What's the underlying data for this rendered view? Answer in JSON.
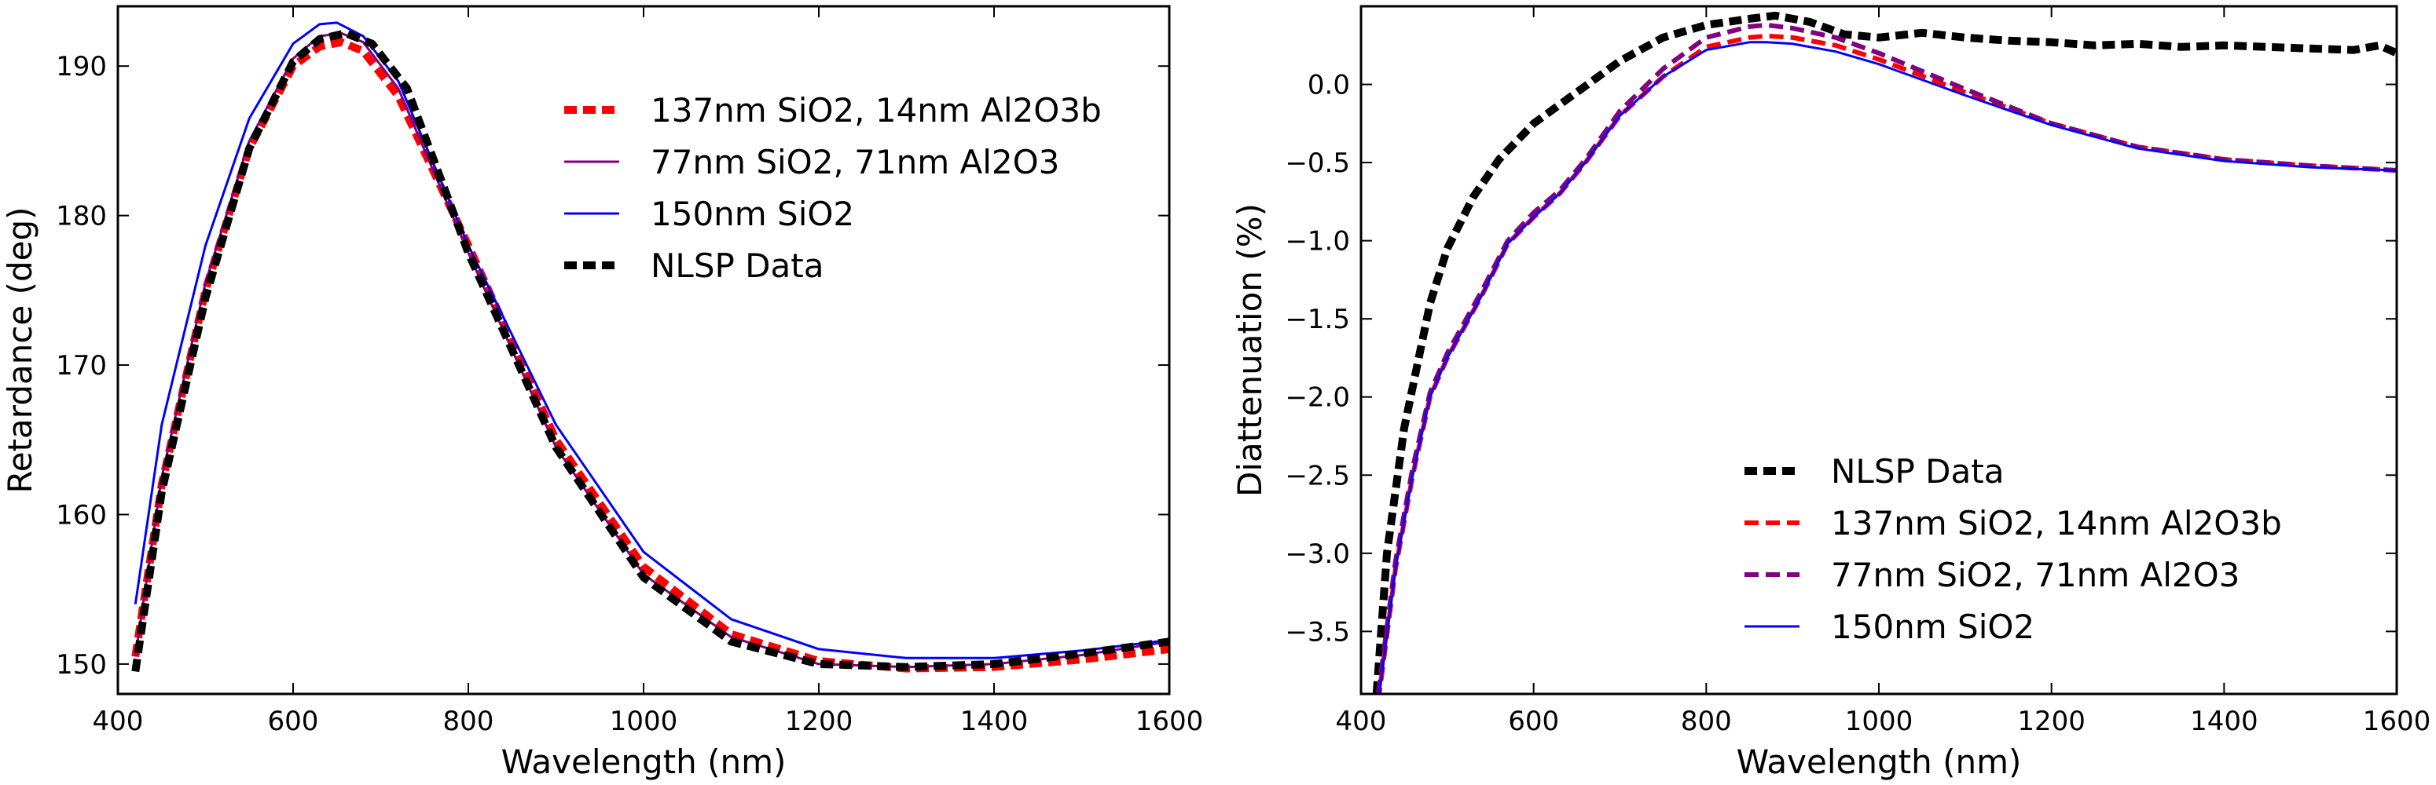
{
  "chart_data": [
    {
      "type": "line",
      "title": "",
      "xlabel": "Wavelength (nm)",
      "ylabel": "Retardance (deg)",
      "xlim": [
        400,
        1600
      ],
      "ylim": [
        148,
        194
      ],
      "xticks": [
        400,
        600,
        800,
        1000,
        1200,
        1400,
        1600
      ],
      "xtick_labels": [
        "400",
        "600",
        "800",
        "1000",
        "1200",
        "1400",
        "1600"
      ],
      "yticks": [
        150,
        160,
        170,
        180,
        190
      ],
      "ytick_labels": [
        "150",
        "160",
        "170",
        "180",
        "190"
      ],
      "legend_position": "upper-right",
      "series": [
        {
          "name": "137nm SiO2, 14nm Al2O3b",
          "color": "#ff0000",
          "style": "dashed-thick",
          "x": [
            420,
            450,
            500,
            550,
            600,
            630,
            655,
            680,
            720,
            800,
            900,
            1000,
            1100,
            1200,
            1300,
            1400,
            1500,
            1600
          ],
          "y": [
            150.5,
            162,
            175,
            184.5,
            190,
            191.3,
            191.6,
            191,
            188,
            178,
            165,
            156.5,
            152,
            150.2,
            149.7,
            149.8,
            150.3,
            151
          ]
        },
        {
          "name": "77nm SiO2, 71nm Al2O3",
          "color": "#800080",
          "style": "solid",
          "x": [
            420,
            450,
            500,
            550,
            600,
            630,
            655,
            680,
            720,
            800,
            900,
            1000,
            1100,
            1200,
            1300,
            1400,
            1500,
            1600
          ],
          "y": [
            150.5,
            162.5,
            175.5,
            185,
            190.5,
            192,
            192.2,
            191.6,
            188.5,
            177.5,
            164.5,
            156,
            151.8,
            150,
            149.8,
            150,
            150.6,
            151.5
          ]
        },
        {
          "name": "150nm SiO2",
          "color": "#0000ff",
          "style": "solid",
          "x": [
            420,
            450,
            500,
            550,
            600,
            630,
            650,
            680,
            720,
            800,
            900,
            1000,
            1100,
            1200,
            1300,
            1400,
            1500,
            1600
          ],
          "y": [
            154,
            166,
            178,
            186.5,
            191.5,
            192.8,
            192.9,
            192,
            189,
            178,
            166,
            157.5,
            153,
            151,
            150.4,
            150.4,
            150.9,
            151.6
          ]
        },
        {
          "name": "NLSP Data",
          "color": "#000000",
          "style": "dashed-thick",
          "x": [
            420,
            450,
            500,
            550,
            600,
            630,
            660,
            690,
            730,
            800,
            900,
            1000,
            1100,
            1200,
            1300,
            1400,
            1500,
            1600
          ],
          "y": [
            149.5,
            161.5,
            174.5,
            184.5,
            190.3,
            191.8,
            192.2,
            191.5,
            188.5,
            177.5,
            164.5,
            155.8,
            151.5,
            150,
            149.8,
            150,
            150.7,
            151.5
          ]
        }
      ],
      "legend_order": [
        0,
        1,
        2,
        3
      ]
    },
    {
      "type": "line",
      "title": "",
      "xlabel": "Wavelength (nm)",
      "ylabel": "Diattenuation (%)",
      "xlim": [
        400,
        1600
      ],
      "ylim": [
        -3.9,
        0.5
      ],
      "xticks": [
        400,
        600,
        800,
        1000,
        1200,
        1400,
        1600
      ],
      "xtick_labels": [
        "400",
        "600",
        "800",
        "1000",
        "1200",
        "1400",
        "1600"
      ],
      "yticks": [
        -3.5,
        -3.0,
        -2.5,
        -2.0,
        -1.5,
        -1.0,
        -0.5,
        0.0
      ],
      "ytick_labels": [
        "−3.5",
        "−3.0",
        "−2.5",
        "−2.0",
        "−1.5",
        "−1.0",
        "−0.5",
        "0.0"
      ],
      "legend_position": "lower-center",
      "series": [
        {
          "name": "NLSP Data",
          "color": "#000000",
          "style": "dashed-thick",
          "x": [
            418,
            430,
            450,
            480,
            500,
            530,
            560,
            600,
            650,
            700,
            750,
            800,
            850,
            880,
            920,
            960,
            1000,
            1050,
            1100,
            1150,
            1200,
            1250,
            1300,
            1350,
            1400,
            1450,
            1500,
            1550,
            1580,
            1600
          ],
          "y": [
            -3.9,
            -3.0,
            -2.2,
            -1.4,
            -1.05,
            -0.72,
            -0.48,
            -0.25,
            -0.05,
            0.15,
            0.3,
            0.38,
            0.42,
            0.44,
            0.4,
            0.32,
            0.3,
            0.33,
            0.3,
            0.28,
            0.27,
            0.25,
            0.26,
            0.24,
            0.25,
            0.24,
            0.23,
            0.22,
            0.25,
            0.2
          ]
        },
        {
          "name": "137nm SiO2, 14nm Al2O3b",
          "color": "#ff0000",
          "style": "dashed",
          "x": [
            420,
            440,
            460,
            480,
            500,
            540,
            570,
            600,
            630,
            660,
            700,
            750,
            800,
            850,
            870,
            900,
            950,
            1000,
            1100,
            1200,
            1300,
            1400,
            1500,
            1600
          ],
          "y": [
            -3.95,
            -3.1,
            -2.5,
            -2.0,
            -1.75,
            -1.35,
            -1.02,
            -0.85,
            -0.7,
            -0.5,
            -0.2,
            0.05,
            0.24,
            0.3,
            0.31,
            0.3,
            0.25,
            0.16,
            -0.05,
            -0.25,
            -0.4,
            -0.48,
            -0.52,
            -0.55
          ]
        },
        {
          "name": "77nm SiO2, 71nm Al2O3",
          "color": "#800080",
          "style": "dashed",
          "x": [
            420,
            440,
            460,
            480,
            500,
            540,
            570,
            600,
            630,
            660,
            700,
            750,
            800,
            850,
            870,
            900,
            950,
            1000,
            1100,
            1200,
            1300,
            1400,
            1500,
            1600
          ],
          "y": [
            -3.9,
            -3.05,
            -2.45,
            -1.97,
            -1.72,
            -1.32,
            -1.0,
            -0.82,
            -0.68,
            -0.48,
            -0.17,
            0.1,
            0.3,
            0.37,
            0.38,
            0.36,
            0.3,
            0.2,
            -0.03,
            -0.25,
            -0.4,
            -0.48,
            -0.52,
            -0.55
          ]
        },
        {
          "name": "150nm SiO2",
          "color": "#0000ff",
          "style": "solid",
          "x": [
            420,
            440,
            460,
            480,
            500,
            540,
            570,
            600,
            630,
            660,
            700,
            750,
            800,
            850,
            870,
            900,
            950,
            1000,
            1100,
            1200,
            1300,
            1400,
            1500,
            1600
          ],
          "y": [
            -3.95,
            -3.1,
            -2.5,
            -2.0,
            -1.75,
            -1.35,
            -1.02,
            -0.85,
            -0.7,
            -0.5,
            -0.2,
            0.05,
            0.22,
            0.27,
            0.27,
            0.26,
            0.21,
            0.13,
            -0.07,
            -0.26,
            -0.41,
            -0.49,
            -0.53,
            -0.55
          ]
        }
      ],
      "legend_order": [
        0,
        1,
        2,
        3
      ]
    }
  ]
}
